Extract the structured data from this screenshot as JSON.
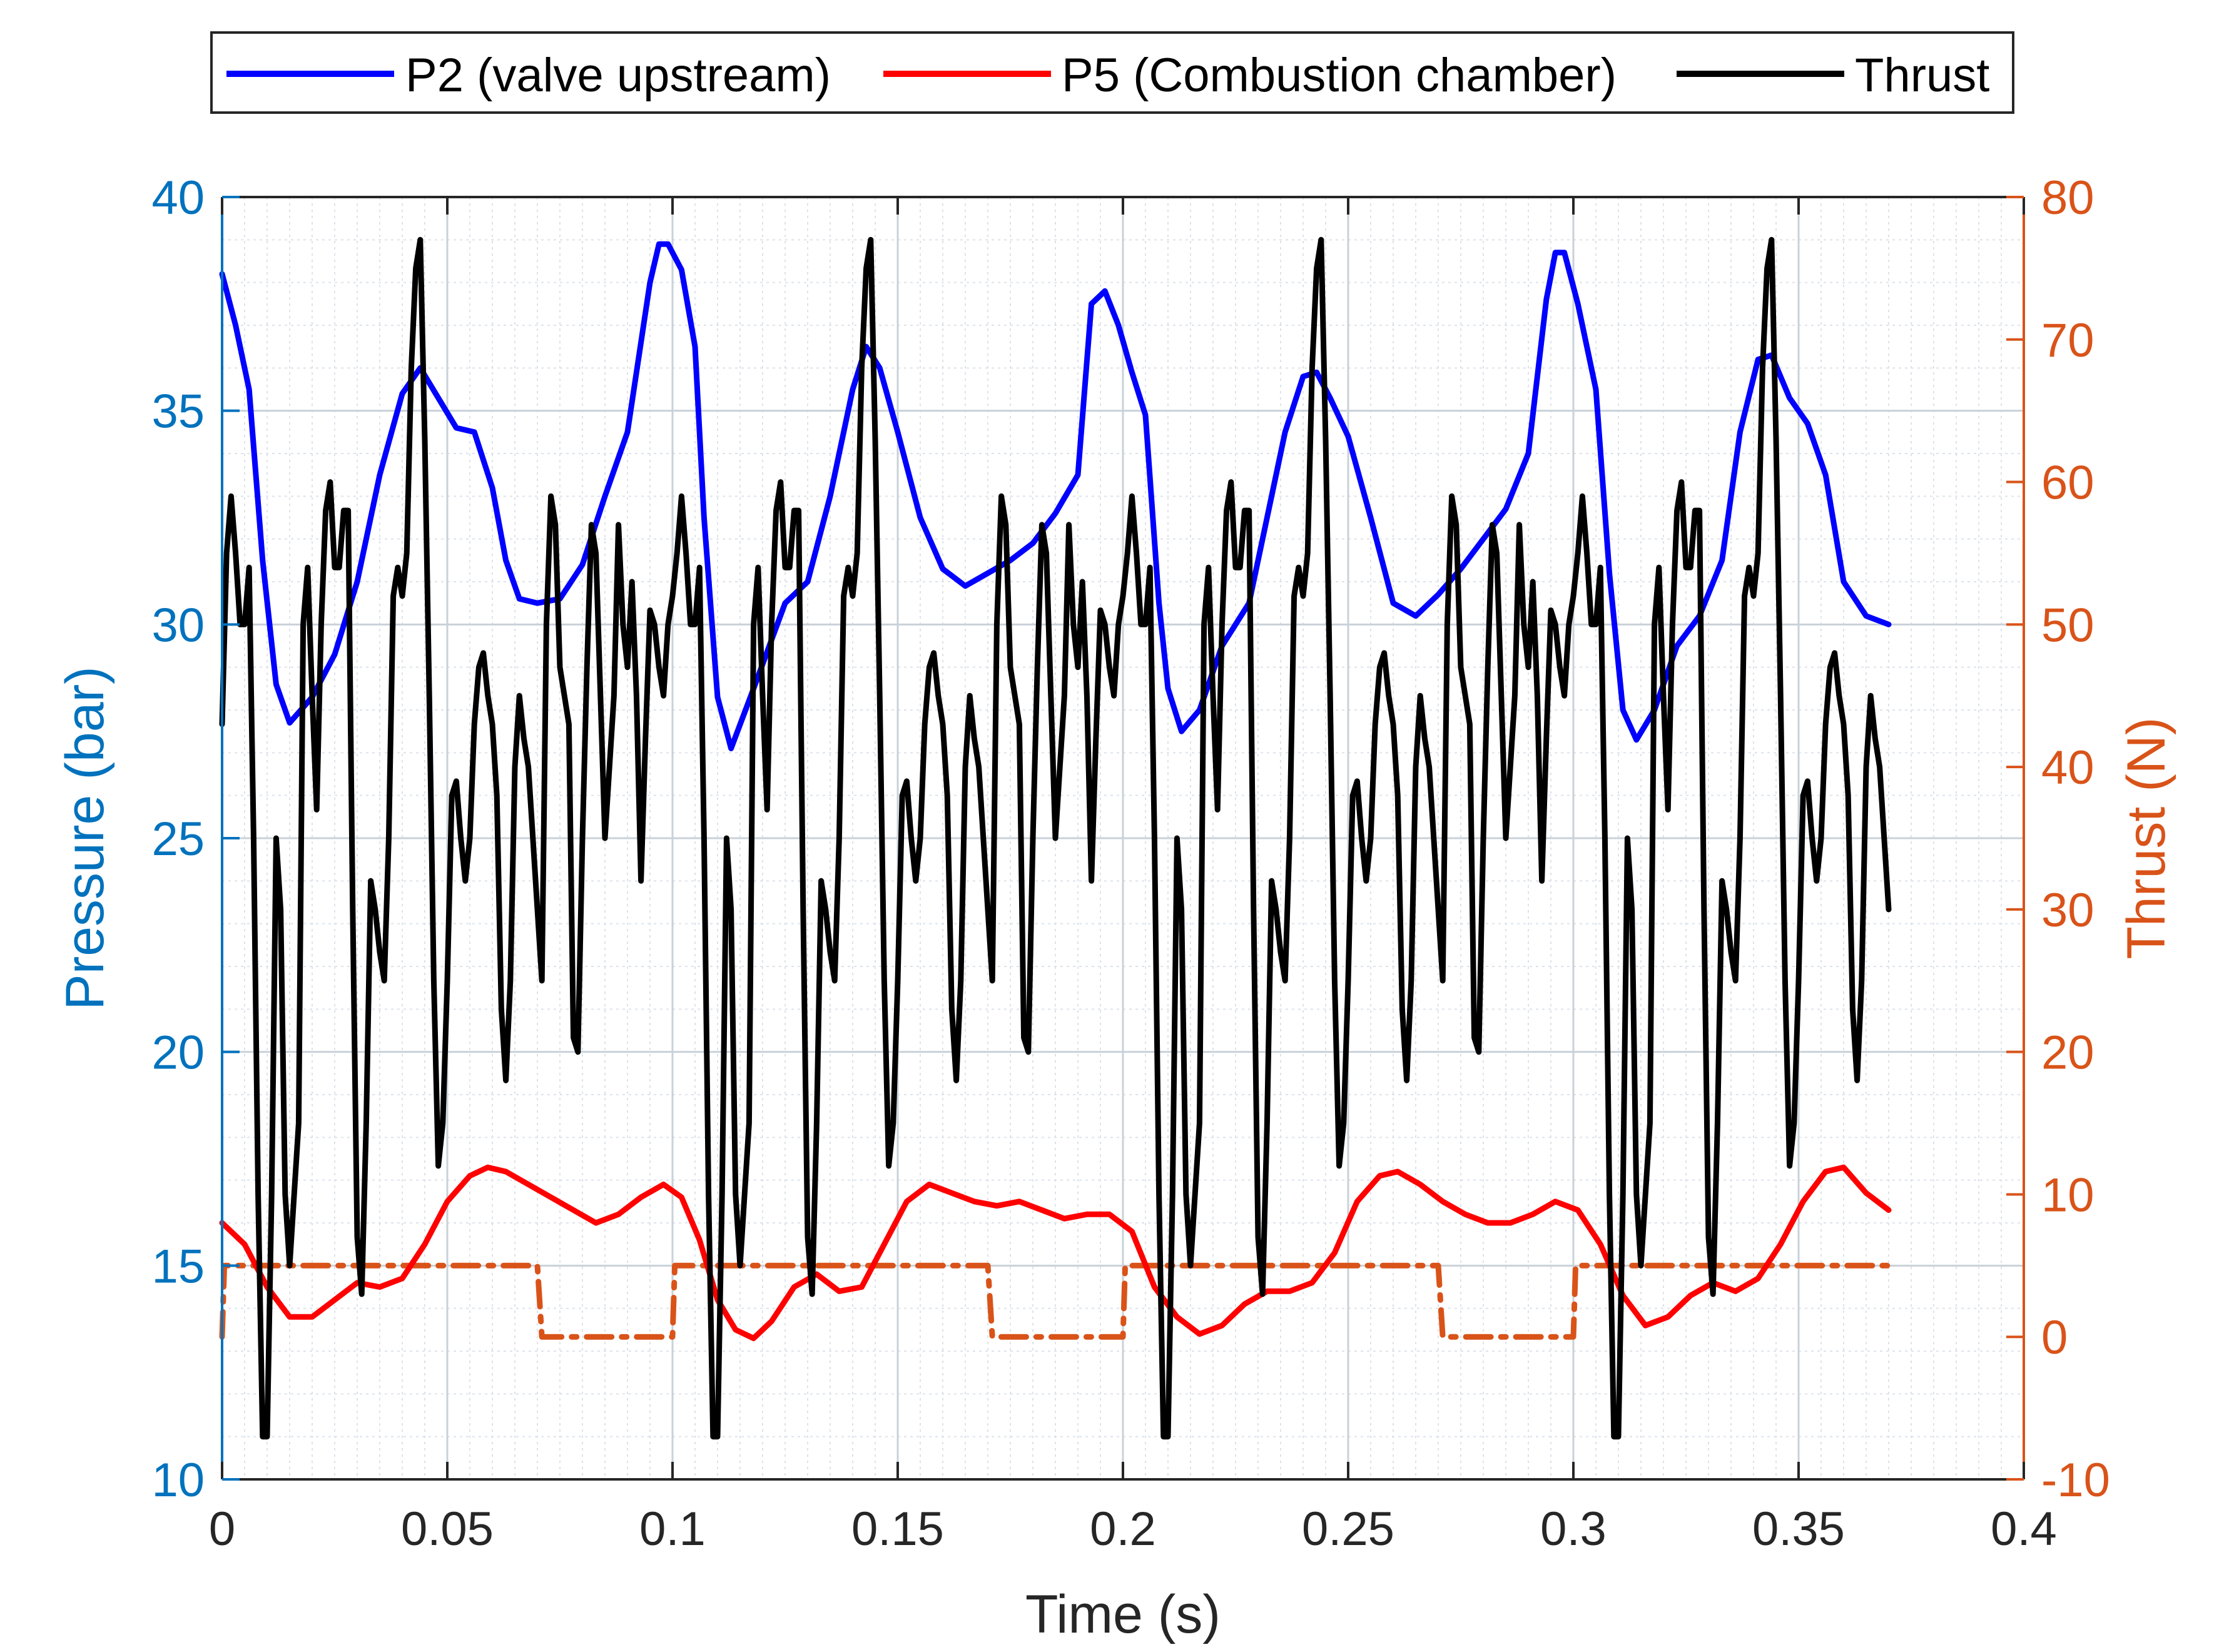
{
  "chart_data": {
    "type": "line",
    "xlabel": "Time (s)",
    "ylabel_left": "Pressure (bar)",
    "ylabel_right": "Thrust (N)",
    "xlim": [
      0,
      0.4
    ],
    "ylim_left": [
      10,
      40
    ],
    "ylim_right": [
      -10,
      80
    ],
    "x_ticks": [
      "0",
      "0.05",
      "0.1",
      "0.15",
      "0.2",
      "0.25",
      "0.3",
      "0.35",
      "0.4"
    ],
    "y_left_ticks": [
      "10",
      "15",
      "20",
      "25",
      "30",
      "35",
      "40"
    ],
    "y_right_ticks": [
      "-10",
      "0",
      "10",
      "20",
      "30",
      "40",
      "50",
      "60",
      "70",
      "80"
    ],
    "grid": "major and minor",
    "legend_position": "top, outside plot",
    "colors": {
      "left_axis": "#0072BD",
      "right_axis": "#D95319",
      "p2": "#0000FF",
      "p5": "#FF0000",
      "thrust": "#000000",
      "valve": "#D95319"
    },
    "series": [
      {
        "name": "P2 (valve upstream)",
        "axis": "left",
        "x": [
          0.0,
          0.003,
          0.006,
          0.009,
          0.012,
          0.015,
          0.02,
          0.025,
          0.03,
          0.035,
          0.04,
          0.044,
          0.048,
          0.052,
          0.056,
          0.06,
          0.063,
          0.066,
          0.07,
          0.075,
          0.08,
          0.085,
          0.09,
          0.095,
          0.097,
          0.099,
          0.102,
          0.105,
          0.107,
          0.11,
          0.113,
          0.118,
          0.125,
          0.13,
          0.135,
          0.14,
          0.143,
          0.146,
          0.15,
          0.155,
          0.16,
          0.165,
          0.17,
          0.175,
          0.18,
          0.185,
          0.19,
          0.193,
          0.196,
          0.199,
          0.202,
          0.205,
          0.208,
          0.21,
          0.213,
          0.217,
          0.222,
          0.228,
          0.232,
          0.236,
          0.24,
          0.243,
          0.246,
          0.25,
          0.255,
          0.26,
          0.265,
          0.27,
          0.275,
          0.28,
          0.285,
          0.29,
          0.294,
          0.296,
          0.298,
          0.301,
          0.305,
          0.308,
          0.311,
          0.314,
          0.318,
          0.323,
          0.328,
          0.333,
          0.337,
          0.341,
          0.344,
          0.348,
          0.352,
          0.356,
          0.36,
          0.365,
          0.37
        ],
        "values": [
          38.2,
          37.0,
          35.5,
          31.5,
          28.6,
          27.7,
          28.3,
          29.3,
          31.0,
          33.5,
          35.4,
          36.0,
          35.3,
          34.6,
          34.5,
          33.2,
          31.5,
          30.6,
          30.5,
          30.6,
          31.4,
          33.0,
          34.5,
          38.0,
          38.9,
          38.9,
          38.3,
          36.5,
          32.5,
          28.3,
          27.1,
          28.5,
          30.5,
          31.0,
          33.0,
          35.5,
          36.5,
          36.0,
          34.5,
          32.5,
          31.3,
          30.9,
          31.2,
          31.5,
          31.9,
          32.6,
          33.5,
          37.5,
          37.8,
          37.0,
          35.9,
          34.9,
          30.5,
          28.5,
          27.5,
          28.0,
          29.5,
          30.5,
          32.5,
          34.5,
          35.8,
          35.9,
          35.3,
          34.4,
          32.5,
          30.5,
          30.2,
          30.7,
          31.3,
          32.0,
          32.7,
          34.0,
          37.6,
          38.7,
          38.7,
          37.5,
          35.5,
          31.2,
          28.0,
          27.3,
          28.0,
          29.5,
          30.2,
          31.5,
          34.5,
          36.2,
          36.3,
          35.3,
          34.7,
          33.5,
          31.0,
          30.2,
          30.0
        ]
      },
      {
        "name": "P5 (Combustion chamber)",
        "axis": "left",
        "x": [
          0.0,
          0.005,
          0.01,
          0.015,
          0.02,
          0.025,
          0.03,
          0.035,
          0.04,
          0.045,
          0.05,
          0.055,
          0.059,
          0.063,
          0.068,
          0.073,
          0.078,
          0.083,
          0.088,
          0.093,
          0.098,
          0.102,
          0.106,
          0.11,
          0.114,
          0.118,
          0.122,
          0.127,
          0.132,
          0.137,
          0.142,
          0.147,
          0.152,
          0.157,
          0.162,
          0.167,
          0.172,
          0.177,
          0.182,
          0.187,
          0.192,
          0.197,
          0.202,
          0.207,
          0.212,
          0.217,
          0.222,
          0.227,
          0.232,
          0.237,
          0.242,
          0.247,
          0.252,
          0.257,
          0.261,
          0.266,
          0.271,
          0.276,
          0.281,
          0.286,
          0.291,
          0.296,
          0.301,
          0.306,
          0.311,
          0.316,
          0.321,
          0.326,
          0.331,
          0.336,
          0.341,
          0.346,
          0.351,
          0.356,
          0.36,
          0.365,
          0.37
        ],
        "values": [
          16.0,
          15.5,
          14.5,
          13.8,
          13.8,
          14.2,
          14.6,
          14.5,
          14.7,
          15.5,
          16.5,
          17.1,
          17.3,
          17.2,
          16.9,
          16.6,
          16.3,
          16.0,
          16.2,
          16.6,
          16.9,
          16.6,
          15.6,
          14.2,
          13.5,
          13.3,
          13.7,
          14.5,
          14.8,
          14.4,
          14.5,
          15.5,
          16.5,
          16.9,
          16.7,
          16.5,
          16.4,
          16.5,
          16.3,
          16.1,
          16.2,
          16.2,
          15.8,
          14.5,
          13.8,
          13.4,
          13.6,
          14.1,
          14.4,
          14.4,
          14.6,
          15.3,
          16.5,
          17.1,
          17.2,
          16.9,
          16.5,
          16.2,
          16.0,
          16.0,
          16.2,
          16.5,
          16.3,
          15.5,
          14.3,
          13.6,
          13.8,
          14.3,
          14.6,
          14.4,
          14.7,
          15.5,
          16.5,
          17.2,
          17.3,
          16.7,
          16.3
        ]
      },
      {
        "name": "Thrust",
        "axis": "right",
        "x": [
          0.0,
          0.001,
          0.002,
          0.003,
          0.004,
          0.005,
          0.006,
          0.007,
          0.008,
          0.009,
          0.01,
          0.011,
          0.012,
          0.013,
          0.014,
          0.015,
          0.016,
          0.017,
          0.018,
          0.019,
          0.02,
          0.021,
          0.022,
          0.023,
          0.024,
          0.025,
          0.026,
          0.027,
          0.028,
          0.029,
          0.03,
          0.031,
          0.032,
          0.033,
          0.034,
          0.035,
          0.036,
          0.037,
          0.038,
          0.039,
          0.04,
          0.041,
          0.042,
          0.043,
          0.044,
          0.045,
          0.046,
          0.047,
          0.048,
          0.049,
          0.05,
          0.051,
          0.052,
          0.053,
          0.054,
          0.055,
          0.056,
          0.057,
          0.058,
          0.059,
          0.06,
          0.061,
          0.062,
          0.063,
          0.064,
          0.065,
          0.066,
          0.067,
          0.068,
          0.069,
          0.07,
          0.071,
          0.072,
          0.073,
          0.074,
          0.075,
          0.076,
          0.077,
          0.078,
          0.079,
          0.08,
          0.081,
          0.082,
          0.083,
          0.084,
          0.085,
          0.086,
          0.087,
          0.088,
          0.089,
          0.09,
          0.091,
          0.092,
          0.093,
          0.094,
          0.095,
          0.096,
          0.097,
          0.098,
          0.099,
          0.1
        ],
        "values": [
          43,
          55,
          59,
          55,
          50,
          50,
          54,
          35,
          10,
          -7,
          -7,
          10,
          35,
          30,
          10,
          5,
          10,
          15,
          50,
          54,
          45,
          37,
          50,
          58,
          60,
          54,
          54,
          58,
          58,
          30,
          7,
          3,
          15,
          32,
          30,
          27,
          25,
          35,
          52,
          54,
          52,
          55,
          68,
          75,
          77,
          63,
          45,
          25,
          12,
          15,
          25,
          38,
          39,
          35,
          32,
          35,
          43,
          47,
          48,
          45,
          43,
          38,
          23,
          18,
          25,
          40,
          45,
          42,
          40,
          35,
          30,
          25,
          50,
          59,
          57,
          47,
          45,
          43,
          21,
          20,
          35,
          47,
          57,
          55,
          45,
          35,
          40,
          45,
          57,
          50,
          47,
          53,
          45,
          32,
          42,
          51,
          50,
          47,
          45,
          50,
          52
        ]
      }
    ],
    "valve_signal": {
      "axis": "right",
      "style": "dash-dot",
      "x": [
        0.0,
        0.0005,
        0.07,
        0.071,
        0.1,
        0.1005,
        0.17,
        0.171,
        0.2,
        0.2005,
        0.27,
        0.271,
        0.3,
        0.3005,
        0.37
      ],
      "values": [
        0,
        5,
        5,
        0,
        0,
        5,
        5,
        0,
        0,
        5,
        5,
        0,
        0,
        5,
        5
      ]
    }
  }
}
